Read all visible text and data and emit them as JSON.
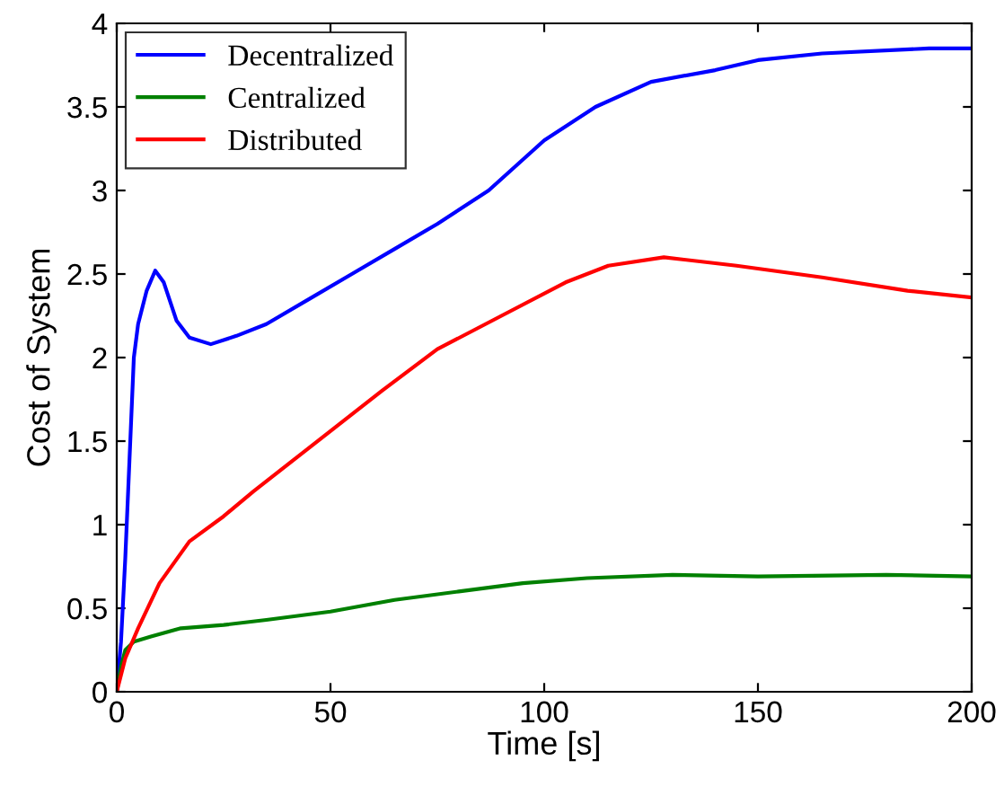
{
  "chart_data": {
    "type": "line",
    "xlabel": "Time [s]",
    "ylabel": "Cost of System",
    "xlim": [
      0,
      200
    ],
    "xticks": [
      0,
      50,
      100,
      150,
      200
    ],
    "ylim": [
      0,
      4
    ],
    "yticks": [
      0,
      0.5,
      1,
      1.5,
      2,
      2.5,
      3,
      3.5,
      4
    ],
    "grid": false,
    "legend": "top left",
    "marker": "none",
    "line_style": "solid",
    "series": [
      {
        "name": "Decentralized",
        "color": "#0000ff",
        "x": [
          0,
          1,
          2,
          3,
          4,
          5,
          7,
          9,
          11,
          14,
          17,
          22,
          28,
          35,
          45,
          55,
          65,
          75,
          87,
          100,
          112,
          125,
          140,
          150,
          165,
          190,
          200
        ],
        "values": [
          0,
          0.3,
          0.8,
          1.4,
          2.0,
          2.2,
          2.4,
          2.52,
          2.45,
          2.22,
          2.12,
          2.08,
          2.13,
          2.2,
          2.35,
          2.5,
          2.65,
          2.8,
          3.0,
          3.3,
          3.5,
          3.65,
          3.72,
          3.78,
          3.82,
          3.85,
          3.85
        ]
      },
      {
        "name": "Centralized",
        "color": "#008000",
        "x": [
          0,
          1,
          2,
          4,
          8,
          15,
          25,
          35,
          50,
          65,
          80,
          95,
          110,
          130,
          150,
          180,
          200
        ],
        "values": [
          0,
          0.15,
          0.25,
          0.3,
          0.33,
          0.38,
          0.4,
          0.43,
          0.48,
          0.55,
          0.6,
          0.65,
          0.68,
          0.7,
          0.69,
          0.7,
          0.69
        ]
      },
      {
        "name": "Distributed",
        "color": "#ff0000",
        "x": [
          0,
          2,
          5,
          10,
          17,
          25,
          32,
          42,
          52,
          62,
          75,
          90,
          105,
          115,
          128,
          145,
          165,
          185,
          200
        ],
        "values": [
          0,
          0.2,
          0.38,
          0.65,
          0.9,
          1.05,
          1.2,
          1.4,
          1.6,
          1.8,
          2.05,
          2.25,
          2.45,
          2.55,
          2.6,
          2.55,
          2.48,
          2.4,
          2.36
        ]
      }
    ]
  }
}
